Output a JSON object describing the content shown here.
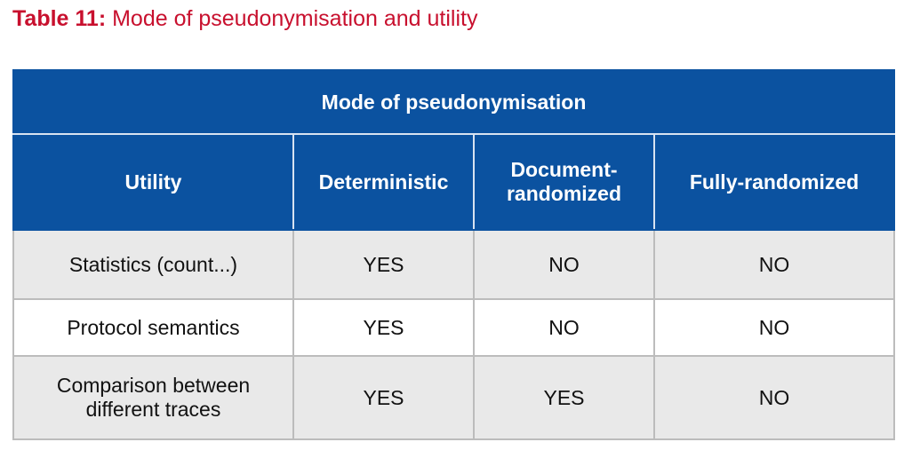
{
  "caption": {
    "label": "Table 11:",
    "title": "Mode of pseudonymisation and utility"
  },
  "table": {
    "group_header": "Mode of pseudonymisation",
    "columns": [
      "Utility",
      "Deterministic",
      "Document-randomized",
      "Fully-randomized"
    ],
    "column_lines": {
      "document_randomized": [
        "Document-",
        "randomized"
      ]
    },
    "rows": [
      {
        "utility": "Statistics (count...)",
        "deterministic": "YES",
        "document_randomized": "NO",
        "fully_randomized": "NO"
      },
      {
        "utility": "Protocol semantics",
        "deterministic": "YES",
        "document_randomized": "NO",
        "fully_randomized": "NO"
      },
      {
        "utility": "Comparison between different traces",
        "utility_lines": [
          "Comparison between",
          "different traces"
        ],
        "deterministic": "YES",
        "document_randomized": "YES",
        "fully_randomized": "NO"
      }
    ]
  },
  "colors": {
    "caption": "#c8102e",
    "header_bg": "#0b52a0",
    "header_text": "#ffffff",
    "row_shade": "#e9e9e9"
  }
}
